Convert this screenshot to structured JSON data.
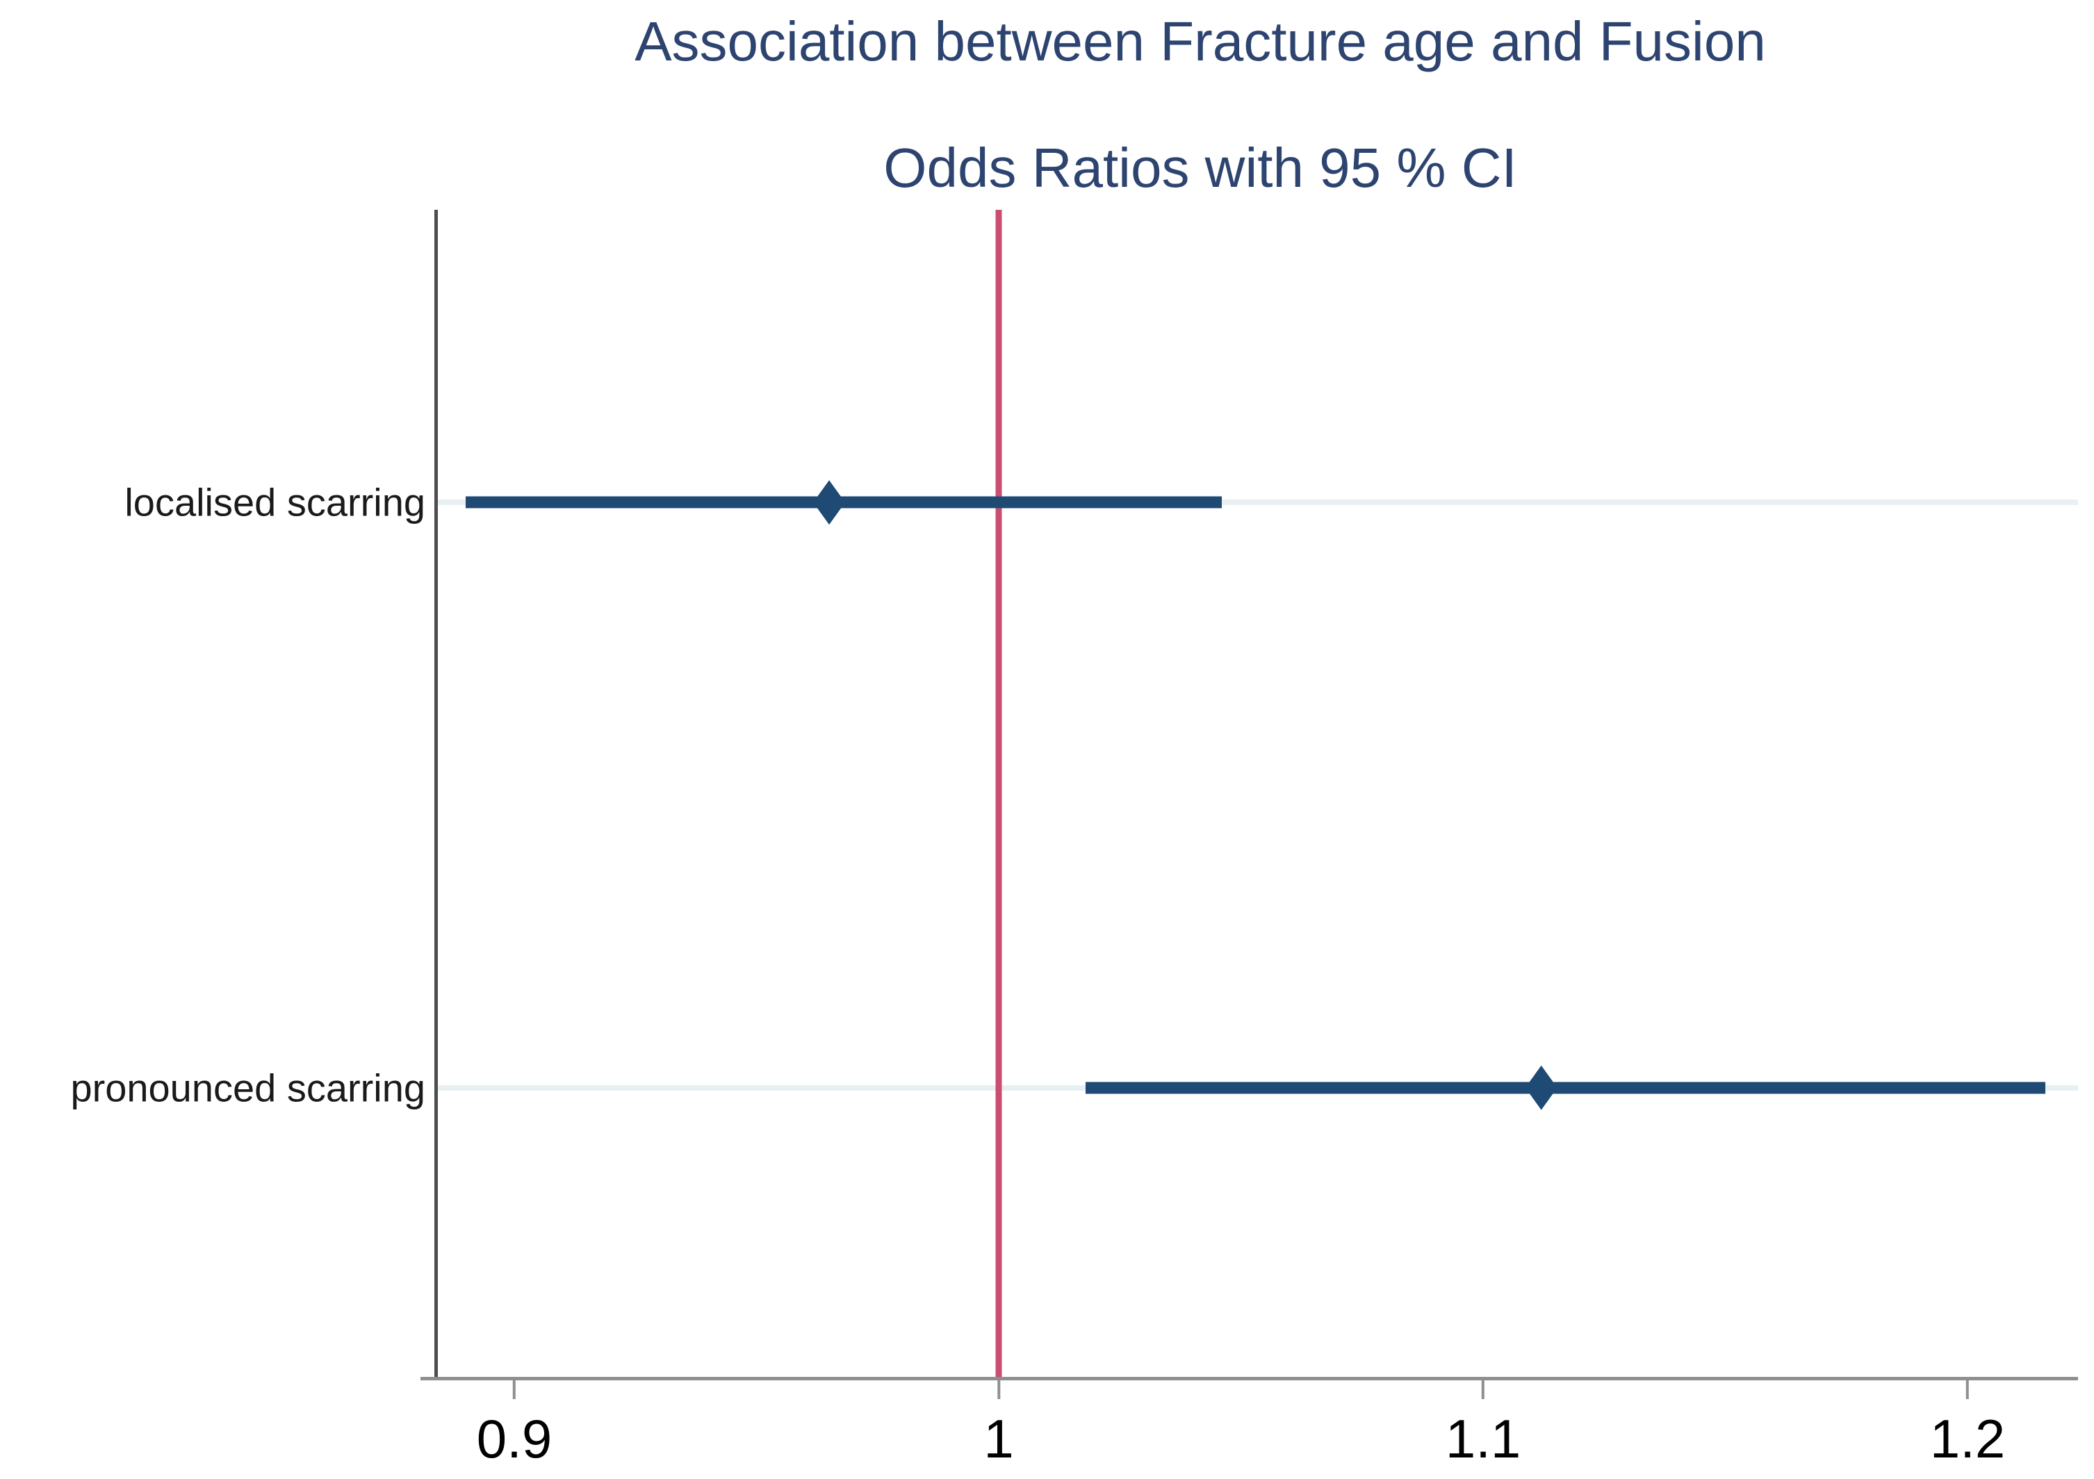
{
  "chart_data": {
    "type": "forest",
    "title": "Association between Fracture age and Fusion",
    "subtitle": "Odds Ratios with 95 % CI",
    "xlabel": "",
    "ylabel": "",
    "xlim": [
      0.8835,
      1.2228
    ],
    "grid": "faint horizontal line per category row",
    "ref_line": {
      "value": 1
    },
    "x_ticks": [
      {
        "value": 0.9,
        "label": "0.9"
      },
      {
        "value": 1,
        "label": "1"
      },
      {
        "value": 1.1,
        "label": "1.1"
      },
      {
        "value": 1.2,
        "label": "1.2"
      }
    ],
    "rows": [
      {
        "label": "localised scarring",
        "or": 0.965,
        "ci_low": 0.89,
        "ci_high": 1.046
      },
      {
        "label": "pronounced scarring",
        "or": 1.112,
        "ci_low": 1.018,
        "ci_high": 1.216
      }
    ],
    "colors": {
      "estimate": "#1e4a73",
      "ref_line": "#cd4d72",
      "title": "#2e4470",
      "gridline": "#e9f0f4",
      "y_axis": "#4d4d4d",
      "x_axis": "#8f8f8f",
      "tick_label": "#000000",
      "row_label": "#1a1a1a"
    }
  }
}
